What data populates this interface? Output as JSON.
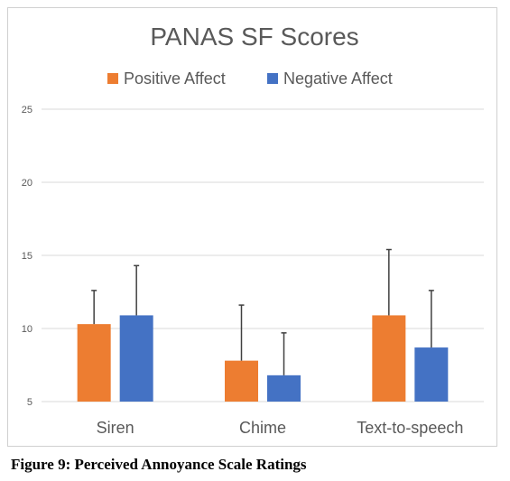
{
  "chart_data": {
    "type": "bar",
    "title": "PANAS SF Scores",
    "categories": [
      "Siren",
      "Chime",
      "Text-to-speech"
    ],
    "series": [
      {
        "name": "Positive Affect",
        "color": "#ED7D31",
        "values": [
          10.3,
          7.8,
          10.9
        ],
        "error_upper": [
          12.6,
          11.6,
          15.4
        ]
      },
      {
        "name": "Negative Affect",
        "color": "#4472C4",
        "values": [
          10.9,
          6.8,
          8.7
        ],
        "error_upper": [
          14.3,
          9.7,
          12.6
        ]
      }
    ],
    "ylim": [
      5,
      25
    ],
    "yticks": [
      "5",
      "10",
      "15",
      "20",
      "25"
    ],
    "grid": true,
    "legend": "top",
    "colors": {
      "grid": "#d9d9d9",
      "error_bar": "#404040",
      "text": "#595959"
    }
  },
  "caption": "Figure 9: Perceived Annoyance Scale Ratings"
}
